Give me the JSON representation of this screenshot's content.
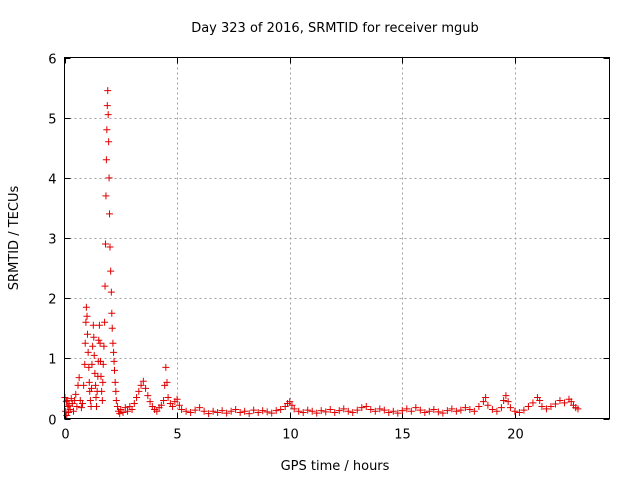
{
  "chart_data": {
    "type": "scatter",
    "title": "Day 323 of 2016, SRMTID for receiver mgub",
    "xlabel": "GPS time / hours",
    "ylabel": "SRMTID / TECUs",
    "xlim": [
      0,
      24.2
    ],
    "ylim": [
      0,
      6
    ],
    "xticks": [
      0,
      5,
      10,
      15,
      20
    ],
    "yticks": [
      0,
      1,
      2,
      3,
      4,
      5,
      6
    ],
    "xtick_labels": [
      "0",
      "5",
      "10",
      "15",
      "20"
    ],
    "ytick_labels": [
      "0",
      "1",
      "2",
      "3",
      "4",
      "5",
      "6"
    ],
    "grid": true,
    "marker": "+",
    "color": "#e00000",
    "series": [
      {
        "name": "mgub",
        "points": [
          [
            0.02,
            0.35
          ],
          [
            0.05,
            0.12
          ],
          [
            0.08,
            0.28
          ],
          [
            0.1,
            0.05
          ],
          [
            0.12,
            0.3
          ],
          [
            0.15,
            0.2
          ],
          [
            0.18,
            0.1
          ],
          [
            0.2,
            0.22
          ],
          [
            0.25,
            0.15
          ],
          [
            0.3,
            0.33
          ],
          [
            0.35,
            0.25
          ],
          [
            0.4,
            0.12
          ],
          [
            0.45,
            0.3
          ],
          [
            0.5,
            0.4
          ],
          [
            0.55,
            0.2
          ],
          [
            0.6,
            0.55
          ],
          [
            0.65,
            0.68
          ],
          [
            0.7,
            0.3
          ],
          [
            0.75,
            0.18
          ],
          [
            0.8,
            0.25
          ],
          [
            0.85,
            0.55
          ],
          [
            0.9,
            0.9
          ],
          [
            0.92,
            1.25
          ],
          [
            0.95,
            1.6
          ],
          [
            0.97,
            1.85
          ],
          [
            1.0,
            1.7
          ],
          [
            1.02,
            1.4
          ],
          [
            1.05,
            1.1
          ],
          [
            1.08,
            0.85
          ],
          [
            1.1,
            0.6
          ],
          [
            1.12,
            0.45
          ],
          [
            1.15,
            0.3
          ],
          [
            1.18,
            0.2
          ],
          [
            1.2,
            0.5
          ],
          [
            1.22,
            0.9
          ],
          [
            1.25,
            1.2
          ],
          [
            1.28,
            1.55
          ],
          [
            1.3,
            1.35
          ],
          [
            1.32,
            1.05
          ],
          [
            1.35,
            0.75
          ],
          [
            1.38,
            0.55
          ],
          [
            1.4,
            0.35
          ],
          [
            1.42,
            0.2
          ],
          [
            1.45,
            0.45
          ],
          [
            1.48,
            0.7
          ],
          [
            1.5,
            0.95
          ],
          [
            1.52,
            1.3
          ],
          [
            1.55,
            1.55
          ],
          [
            1.58,
            1.25
          ],
          [
            1.6,
            0.95
          ],
          [
            1.62,
            0.7
          ],
          [
            1.65,
            0.45
          ],
          [
            1.68,
            0.3
          ],
          [
            1.7,
            0.6
          ],
          [
            1.72,
            0.9
          ],
          [
            1.75,
            1.2
          ],
          [
            1.78,
            1.6
          ],
          [
            1.8,
            2.2
          ],
          [
            1.82,
            2.9
          ],
          [
            1.84,
            3.7
          ],
          [
            1.86,
            4.3
          ],
          [
            1.88,
            4.8
          ],
          [
            1.9,
            5.2
          ],
          [
            1.92,
            5.45
          ],
          [
            1.94,
            5.05
          ],
          [
            1.96,
            4.6
          ],
          [
            1.98,
            4.0
          ],
          [
            2.0,
            3.4
          ],
          [
            2.02,
            2.85
          ],
          [
            2.05,
            2.45
          ],
          [
            2.08,
            2.1
          ],
          [
            2.1,
            1.75
          ],
          [
            2.12,
            1.5
          ],
          [
            2.15,
            1.25
          ],
          [
            2.18,
            1.1
          ],
          [
            2.2,
            0.95
          ],
          [
            2.22,
            0.8
          ],
          [
            2.25,
            0.6
          ],
          [
            2.28,
            0.45
          ],
          [
            2.3,
            0.3
          ],
          [
            2.35,
            0.2
          ],
          [
            2.4,
            0.12
          ],
          [
            2.45,
            0.08
          ],
          [
            2.5,
            0.15
          ],
          [
            2.6,
            0.1
          ],
          [
            2.7,
            0.18
          ],
          [
            2.8,
            0.12
          ],
          [
            2.9,
            0.2
          ],
          [
            3.0,
            0.15
          ],
          [
            3.1,
            0.25
          ],
          [
            3.2,
            0.35
          ],
          [
            3.3,
            0.45
          ],
          [
            3.4,
            0.55
          ],
          [
            3.5,
            0.62
          ],
          [
            3.6,
            0.5
          ],
          [
            3.7,
            0.38
          ],
          [
            3.8,
            0.28
          ],
          [
            3.9,
            0.2
          ],
          [
            4.0,
            0.15
          ],
          [
            4.1,
            0.12
          ],
          [
            4.2,
            0.18
          ],
          [
            4.3,
            0.22
          ],
          [
            4.4,
            0.3
          ],
          [
            4.45,
            0.55
          ],
          [
            4.5,
            0.85
          ],
          [
            4.55,
            0.6
          ],
          [
            4.6,
            0.35
          ],
          [
            4.7,
            0.25
          ],
          [
            4.8,
            0.2
          ],
          [
            4.9,
            0.28
          ],
          [
            5.0,
            0.32
          ],
          [
            5.1,
            0.22
          ],
          [
            5.2,
            0.15
          ],
          [
            5.4,
            0.12
          ],
          [
            5.6,
            0.1
          ],
          [
            5.8,
            0.14
          ],
          [
            6.0,
            0.18
          ],
          [
            6.2,
            0.12
          ],
          [
            6.4,
            0.08
          ],
          [
            6.6,
            0.12
          ],
          [
            6.8,
            0.1
          ],
          [
            7.0,
            0.13
          ],
          [
            7.2,
            0.09
          ],
          [
            7.4,
            0.12
          ],
          [
            7.6,
            0.15
          ],
          [
            7.8,
            0.1
          ],
          [
            8.0,
            0.12
          ],
          [
            8.2,
            0.08
          ],
          [
            8.4,
            0.14
          ],
          [
            8.6,
            0.1
          ],
          [
            8.8,
            0.13
          ],
          [
            9.0,
            0.11
          ],
          [
            9.2,
            0.09
          ],
          [
            9.4,
            0.13
          ],
          [
            9.6,
            0.15
          ],
          [
            9.8,
            0.2
          ],
          [
            9.9,
            0.25
          ],
          [
            10.0,
            0.28
          ],
          [
            10.1,
            0.22
          ],
          [
            10.2,
            0.16
          ],
          [
            10.4,
            0.12
          ],
          [
            10.6,
            0.1
          ],
          [
            10.8,
            0.14
          ],
          [
            11.0,
            0.12
          ],
          [
            11.2,
            0.09
          ],
          [
            11.4,
            0.13
          ],
          [
            11.6,
            0.11
          ],
          [
            11.8,
            0.15
          ],
          [
            12.0,
            0.1
          ],
          [
            12.2,
            0.13
          ],
          [
            12.4,
            0.16
          ],
          [
            12.6,
            0.12
          ],
          [
            12.8,
            0.1
          ],
          [
            13.0,
            0.14
          ],
          [
            13.2,
            0.18
          ],
          [
            13.4,
            0.2
          ],
          [
            13.6,
            0.15
          ],
          [
            13.8,
            0.12
          ],
          [
            14.0,
            0.16
          ],
          [
            14.2,
            0.14
          ],
          [
            14.4,
            0.1
          ],
          [
            14.6,
            0.12
          ],
          [
            14.8,
            0.09
          ],
          [
            15.0,
            0.13
          ],
          [
            15.2,
            0.16
          ],
          [
            15.4,
            0.12
          ],
          [
            15.6,
            0.18
          ],
          [
            15.8,
            0.14
          ],
          [
            16.0,
            0.1
          ],
          [
            16.2,
            0.12
          ],
          [
            16.4,
            0.15
          ],
          [
            16.6,
            0.11
          ],
          [
            16.8,
            0.09
          ],
          [
            17.0,
            0.13
          ],
          [
            17.2,
            0.16
          ],
          [
            17.4,
            0.12
          ],
          [
            17.6,
            0.14
          ],
          [
            17.8,
            0.18
          ],
          [
            18.0,
            0.15
          ],
          [
            18.2,
            0.12
          ],
          [
            18.4,
            0.2
          ],
          [
            18.6,
            0.28
          ],
          [
            18.7,
            0.35
          ],
          [
            18.8,
            0.22
          ],
          [
            19.0,
            0.15
          ],
          [
            19.2,
            0.12
          ],
          [
            19.4,
            0.18
          ],
          [
            19.5,
            0.3
          ],
          [
            19.6,
            0.38
          ],
          [
            19.7,
            0.28
          ],
          [
            19.8,
            0.18
          ],
          [
            20.0,
            0.12
          ],
          [
            20.2,
            0.1
          ],
          [
            20.4,
            0.14
          ],
          [
            20.6,
            0.2
          ],
          [
            20.8,
            0.26
          ],
          [
            21.0,
            0.35
          ],
          [
            21.1,
            0.3
          ],
          [
            21.2,
            0.2
          ],
          [
            21.4,
            0.16
          ],
          [
            21.6,
            0.2
          ],
          [
            21.8,
            0.24
          ],
          [
            22.0,
            0.3
          ],
          [
            22.2,
            0.26
          ],
          [
            22.4,
            0.32
          ],
          [
            22.5,
            0.28
          ],
          [
            22.6,
            0.22
          ],
          [
            22.7,
            0.18
          ],
          [
            22.8,
            0.16
          ]
        ]
      }
    ]
  }
}
